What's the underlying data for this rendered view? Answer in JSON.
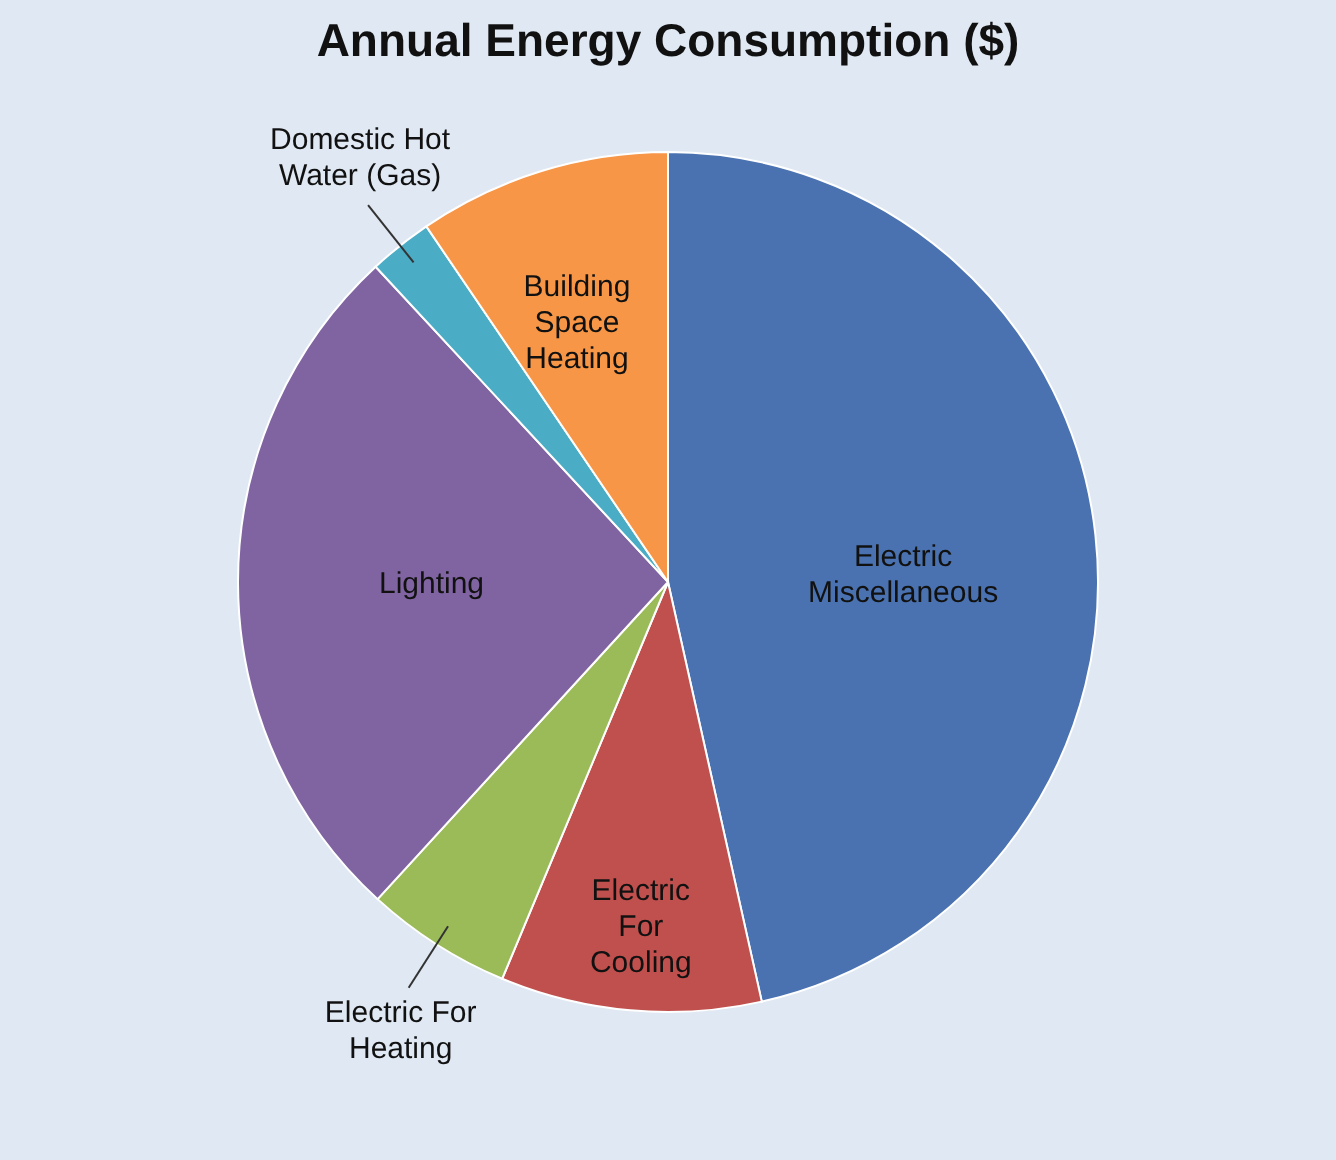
{
  "chart_data": {
    "type": "pie",
    "title": "Annual Energy Consumption ($)",
    "categories": [
      "Electric Miscellaneous",
      "Electric For Cooling",
      "Electric For Heating",
      "Lighting",
      "Domestic Hot Water (Gas)",
      "Building Space Heating"
    ],
    "values": [
      46.5,
      9.8,
      5.5,
      26.3,
      2.4,
      9.5
    ],
    "colors": [
      "#4a72b0",
      "#c0504d",
      "#9bbb59",
      "#8064a2",
      "#4bacc6",
      "#f79646"
    ]
  }
}
